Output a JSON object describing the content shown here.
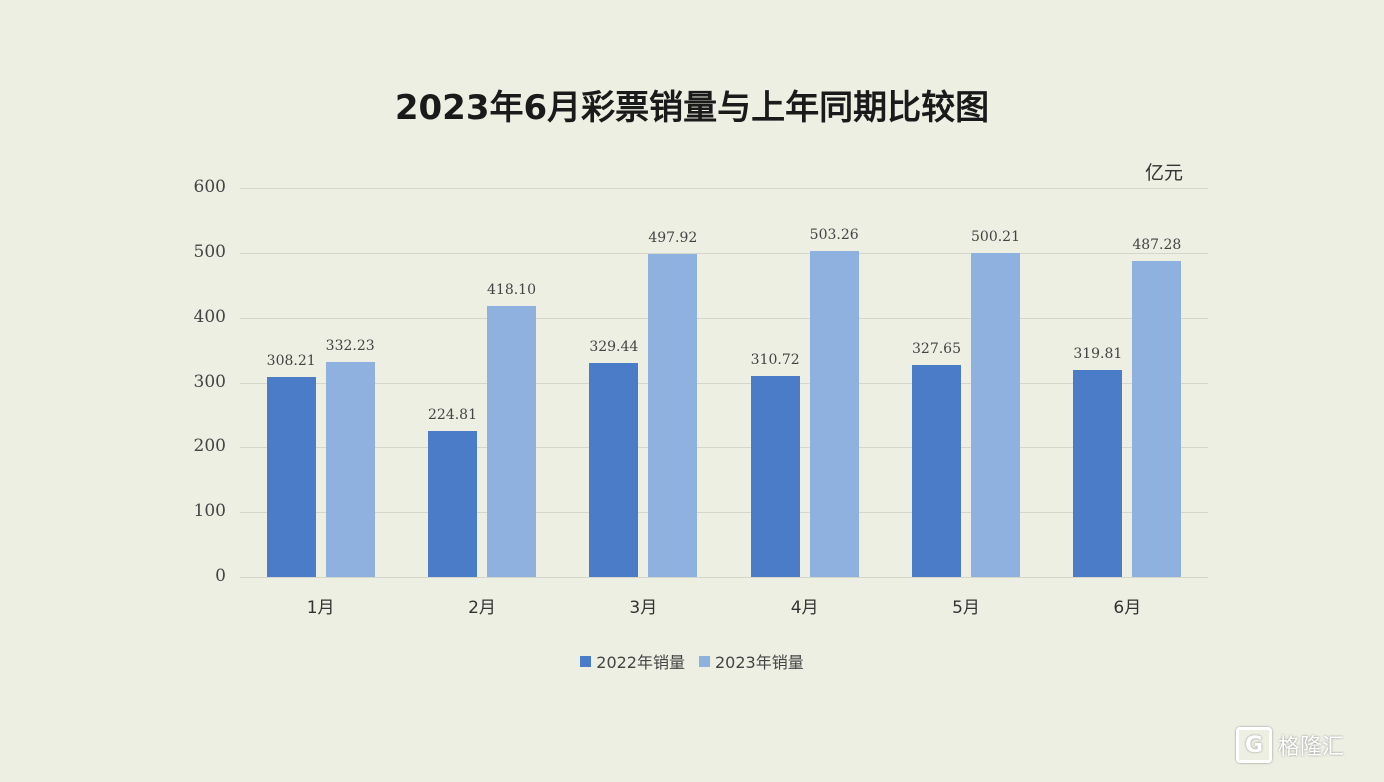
{
  "chart_data": {
    "type": "bar",
    "title": "2023年6月彩票销量与上年同期比较图",
    "unit": "亿元",
    "xlabel": "",
    "ylabel": "亿元",
    "ylim": [
      0,
      600
    ],
    "yticks": [
      "0",
      "100",
      "200",
      "300",
      "400",
      "500",
      "600"
    ],
    "grid": true,
    "legend_position": "bottom",
    "categories": [
      "1月",
      "2月",
      "3月",
      "4月",
      "5月",
      "6月"
    ],
    "series": [
      {
        "name": "2022年销量",
        "color": "#4a7cc7",
        "values": [
          308.21,
          224.81,
          329.44,
          310.72,
          327.65,
          319.81
        ],
        "labels": [
          "308.21",
          "224.81",
          "329.44",
          "310.72",
          "327.65",
          "319.81"
        ]
      },
      {
        "name": "2023年销量",
        "color": "#8fb1e0",
        "values": [
          332.23,
          418.1,
          497.92,
          503.26,
          500.21,
          487.28
        ],
        "labels": [
          "332.23",
          "418.10",
          "497.92",
          "503.26",
          "500.21",
          "487.28"
        ]
      }
    ]
  },
  "watermark": {
    "icon": "G",
    "text": "格隆汇"
  }
}
